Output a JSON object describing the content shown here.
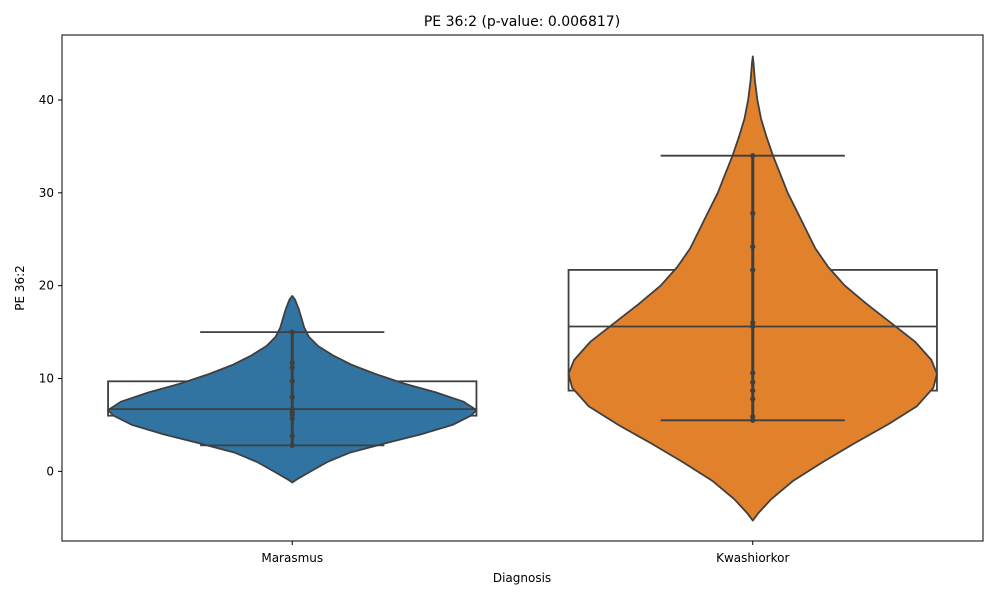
{
  "chart_data": {
    "type": "violin",
    "title": "PE 36:2 (p-value: 0.006817)",
    "xlabel": "Diagnosis",
    "ylabel": "PE 36:2",
    "categories": [
      "Marasmus",
      "Kwashiorkor"
    ],
    "ylim": [
      -7.5,
      47
    ],
    "yticks": [
      0,
      10,
      20,
      30,
      40
    ],
    "grid": false,
    "line_color": "#3f3f3f",
    "groups": [
      {
        "name": "Marasmus",
        "color": "#3274a1",
        "box": {
          "q1": 6.0,
          "median": 6.7,
          "q3": 9.7,
          "whisker_low": 2.8,
          "whisker_high": 15.0
        },
        "points": [
          2.8,
          3.8,
          5.7,
          6.1,
          6.4,
          6.7,
          8.0,
          9.7,
          11.2,
          11.7,
          15.0
        ],
        "violin": [
          [
            -1.2,
            0.0
          ],
          [
            -0.8,
            0.03
          ],
          [
            0.0,
            0.1
          ],
          [
            1.0,
            0.19
          ],
          [
            2.0,
            0.31
          ],
          [
            3.0,
            0.5
          ],
          [
            4.0,
            0.7
          ],
          [
            5.0,
            0.87
          ],
          [
            6.0,
            0.97
          ],
          [
            6.6,
            1.0
          ],
          [
            7.5,
            0.93
          ],
          [
            8.5,
            0.78
          ],
          [
            9.5,
            0.6
          ],
          [
            10.5,
            0.45
          ],
          [
            11.5,
            0.32
          ],
          [
            12.5,
            0.22
          ],
          [
            13.5,
            0.14
          ],
          [
            14.5,
            0.09
          ],
          [
            15.5,
            0.065
          ],
          [
            16.5,
            0.05
          ],
          [
            17.5,
            0.035
          ],
          [
            18.5,
            0.015
          ],
          [
            18.9,
            0.0
          ]
        ]
      },
      {
        "name": "Kwashiorkor",
        "color": "#e1812c",
        "box": {
          "q1": 8.7,
          "median": 15.6,
          "q3": 21.7,
          "whisker_low": 5.5,
          "whisker_high": 34.0
        },
        "points": [
          5.5,
          5.9,
          7.8,
          8.7,
          9.6,
          10.6,
          15.6,
          16.0,
          21.7,
          24.2,
          27.8,
          34.0
        ],
        "violin": [
          [
            -5.3,
            0.0
          ],
          [
            -4.5,
            0.03
          ],
          [
            -3.0,
            0.1
          ],
          [
            -1.0,
            0.22
          ],
          [
            1.0,
            0.38
          ],
          [
            3.0,
            0.55
          ],
          [
            5.0,
            0.73
          ],
          [
            7.0,
            0.89
          ],
          [
            9.0,
            0.98
          ],
          [
            10.5,
            1.0
          ],
          [
            12.0,
            0.97
          ],
          [
            14.0,
            0.88
          ],
          [
            16.0,
            0.75
          ],
          [
            18.0,
            0.62
          ],
          [
            20.0,
            0.5
          ],
          [
            22.0,
            0.41
          ],
          [
            24.0,
            0.34
          ],
          [
            26.0,
            0.29
          ],
          [
            28.0,
            0.24
          ],
          [
            30.0,
            0.19
          ],
          [
            32.0,
            0.15
          ],
          [
            34.0,
            0.11
          ],
          [
            36.0,
            0.075
          ],
          [
            38.0,
            0.045
          ],
          [
            40.0,
            0.025
          ],
          [
            42.0,
            0.012
          ],
          [
            44.0,
            0.004
          ],
          [
            44.7,
            0.0
          ]
        ]
      }
    ]
  }
}
